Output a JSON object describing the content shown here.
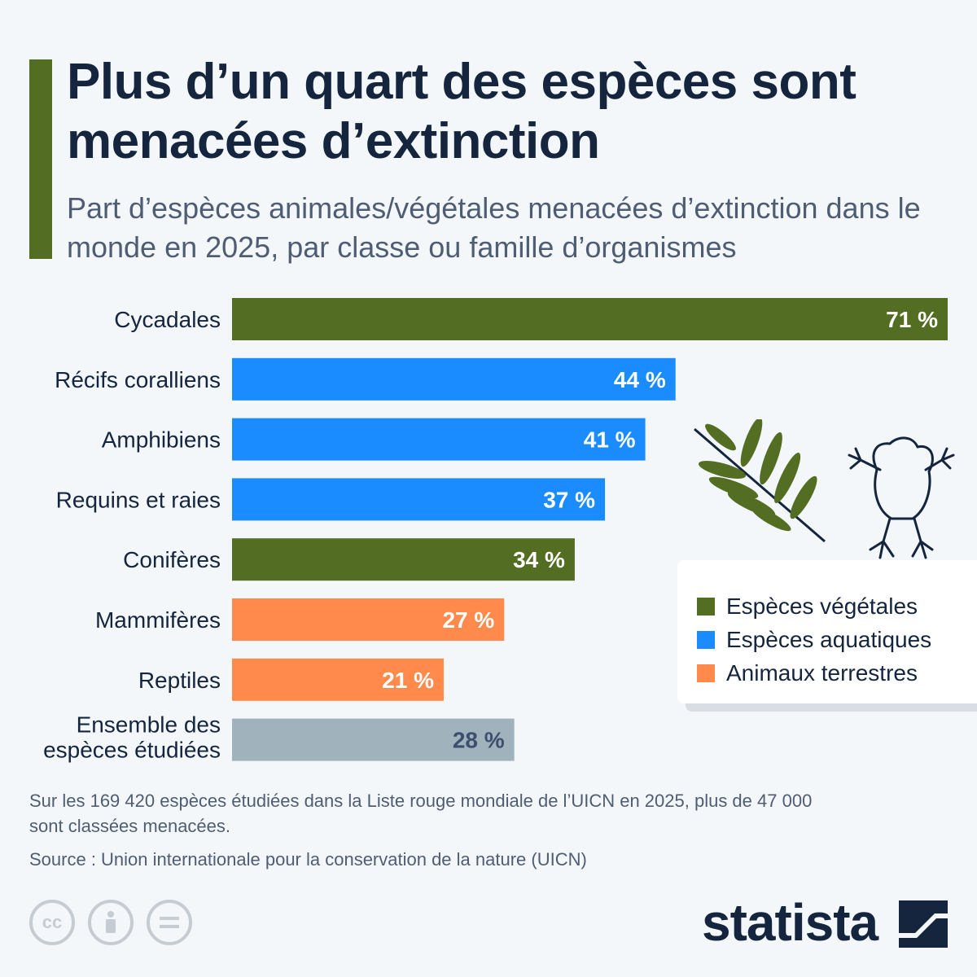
{
  "header": {
    "title": "Plus d’un quart des espèces sont menacées d’extinction",
    "subtitle": "Part d’espèces animales/végétales menacées d’extinction dans le monde en 2025, par classe ou famille d’organismes"
  },
  "colors": {
    "vegetal": "#536d23",
    "aquatic": "#1a8cff",
    "terrestrial": "#ff8a4c",
    "overall": "#a0b2bc",
    "accent": "#536d23"
  },
  "chart_data": {
    "type": "bar",
    "orientation": "horizontal",
    "categories": [
      "Cycadales",
      "Récifs coralliens",
      "Amphibiens",
      "Requins et raies",
      "Conifères",
      "Mammifères",
      "Reptiles",
      "Ensemble des espèces étudiées"
    ],
    "values": [
      71,
      44,
      41,
      37,
      34,
      27,
      21,
      28
    ],
    "value_labels": [
      "71 %",
      "44 %",
      "41 %",
      "37 %",
      "34 %",
      "27 %",
      "21 %",
      "28 %"
    ],
    "groups": [
      "vegetal",
      "aquatic",
      "aquatic",
      "aquatic",
      "vegetal",
      "terrestrial",
      "terrestrial",
      "overall"
    ],
    "xlim": [
      0,
      71
    ],
    "grid": false,
    "legend_position": "right"
  },
  "legend": {
    "items": [
      {
        "label": "Espèces végétales",
        "color": "#536d23"
      },
      {
        "label": "Espèces aquatiques",
        "color": "#1a8cff"
      },
      {
        "label": "Animaux terrestres",
        "color": "#ff8a4c"
      }
    ]
  },
  "footer": {
    "note": "Sur les 169 420 espèces étudiées dans la Liste rouge mondiale de l’UICN en 2025, plus de 47 000 sont classées menacées.",
    "source": "Source : Union internationale pour la conservation de la nature (UICN)",
    "brand": "statista",
    "cc_icons": [
      "cc-icon",
      "by-icon",
      "nd-icon"
    ]
  }
}
